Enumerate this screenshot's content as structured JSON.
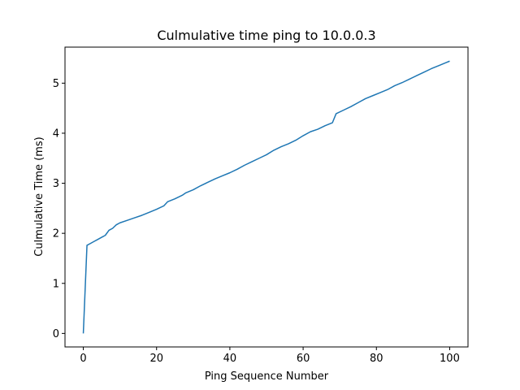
{
  "chart_data": {
    "type": "line",
    "title": "Culmulative time ping to 10.0.0.3",
    "xlabel": "Ping Sequence Number",
    "ylabel": "Culmulative Time (ms)",
    "xlim": [
      -5,
      105
    ],
    "ylim": [
      -0.27,
      5.72
    ],
    "xticks": [
      0,
      20,
      40,
      60,
      80,
      100
    ],
    "yticks": [
      0,
      1,
      2,
      3,
      4,
      5
    ],
    "grid": false,
    "series": [
      {
        "color": "#1f77b4",
        "x": [
          0,
          1,
          2,
          3,
          4,
          5,
          6,
          7,
          8,
          9,
          10,
          12,
          14,
          16,
          18,
          20,
          22,
          23,
          25,
          27,
          28,
          30,
          32,
          34,
          36,
          38,
          40,
          42,
          44,
          46,
          48,
          50,
          52,
          54,
          56,
          58,
          60,
          62,
          64,
          66,
          68,
          69,
          71,
          73,
          75,
          77,
          79,
          81,
          83,
          85,
          87,
          89,
          91,
          93,
          95,
          97,
          99,
          100
        ],
        "y": [
          0,
          1.76,
          1.8,
          1.84,
          1.88,
          1.92,
          1.96,
          2.06,
          2.1,
          2.17,
          2.21,
          2.26,
          2.31,
          2.36,
          2.42,
          2.48,
          2.55,
          2.63,
          2.69,
          2.76,
          2.81,
          2.87,
          2.95,
          3.02,
          3.09,
          3.15,
          3.21,
          3.28,
          3.36,
          3.43,
          3.5,
          3.57,
          3.66,
          3.73,
          3.79,
          3.86,
          3.95,
          4.03,
          4.08,
          4.15,
          4.21,
          4.39,
          4.46,
          4.53,
          4.61,
          4.69,
          4.75,
          4.81,
          4.87,
          4.95,
          5.01,
          5.08,
          5.15,
          5.22,
          5.29,
          5.35,
          5.41,
          5.44
        ]
      }
    ]
  }
}
